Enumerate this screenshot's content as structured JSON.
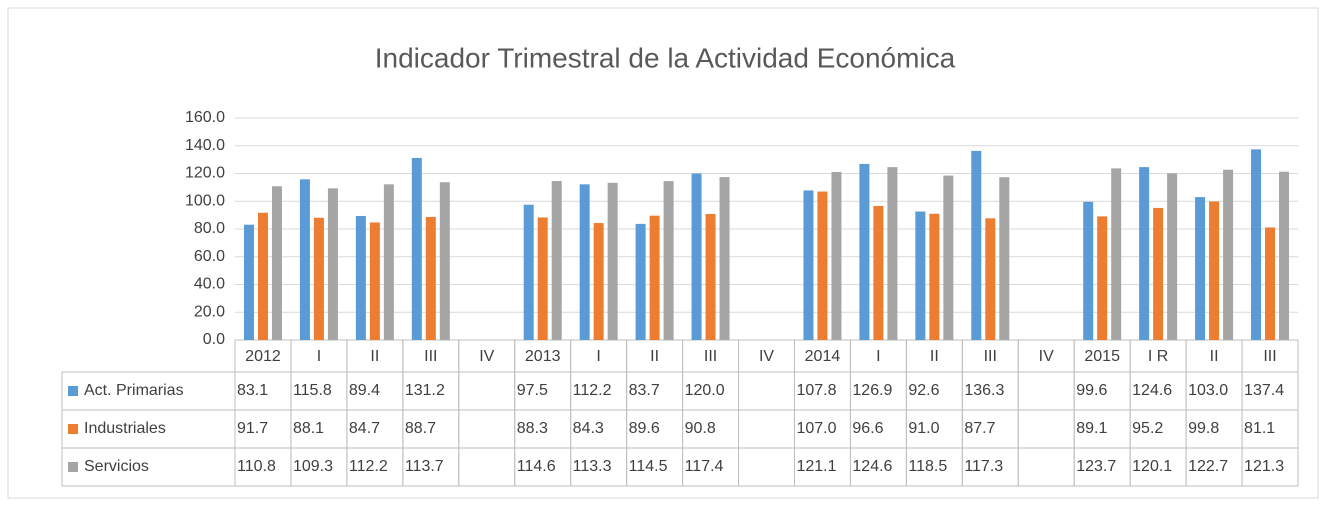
{
  "chart_data": {
    "type": "bar",
    "title": "Indicador Trimestral de la Actividad Económica",
    "categories": [
      "2012",
      "I",
      "II",
      "III",
      "IV",
      "2013",
      "I",
      "II",
      "III",
      "IV",
      "2014",
      "I",
      "II",
      "III",
      "IV",
      "2015",
      "I R",
      "II",
      "III"
    ],
    "series": [
      {
        "name": "Act. Primarias",
        "color": "#5b9bd5",
        "values": [
          83.1,
          115.8,
          89.4,
          131.2,
          null,
          97.5,
          112.2,
          83.7,
          120.0,
          null,
          107.8,
          126.9,
          92.6,
          136.3,
          null,
          99.6,
          124.6,
          103.0,
          137.4
        ],
        "value_labels": [
          "83.1",
          "115.8",
          "89.4",
          "131.2",
          null,
          "97.5",
          "112.2",
          "83.7",
          "120.0",
          null,
          "107.8",
          "126.9",
          "92.6",
          "136.3",
          null,
          "99.6",
          "124.6",
          "103.0",
          "137.4"
        ]
      },
      {
        "name": "Industriales",
        "color": "#ed7d31",
        "values": [
          91.7,
          88.1,
          84.7,
          88.7,
          null,
          88.3,
          84.3,
          89.6,
          90.8,
          null,
          107.0,
          96.6,
          91.0,
          87.7,
          null,
          89.1,
          95.2,
          99.8,
          81.1
        ],
        "value_labels": [
          "91.7",
          "88.1",
          "84.7",
          "88.7",
          null,
          "88.3",
          "84.3",
          "89.6",
          "90.8",
          null,
          "107.0",
          "96.6",
          "91.0",
          "87.7",
          null,
          "89.1",
          "95.2",
          "99.8",
          "81.1"
        ]
      },
      {
        "name": "Servicios",
        "color": "#a5a5a5",
        "values": [
          110.8,
          109.3,
          112.2,
          113.7,
          null,
          114.6,
          113.3,
          114.5,
          117.4,
          null,
          121.1,
          124.6,
          118.5,
          117.3,
          null,
          123.7,
          120.1,
          122.7,
          121.3
        ],
        "value_labels": [
          "110.8",
          "109.3",
          "112.2",
          "113.7",
          null,
          "114.6",
          "113.3",
          "114.5",
          "117.4",
          null,
          "121.1",
          "124.6",
          "118.5",
          "117.3",
          null,
          "123.7",
          "120.1",
          "122.7",
          "121.3"
        ]
      }
    ],
    "ylim": [
      0,
      160
    ],
    "yticks": [
      {
        "value": 0,
        "label": "0.0"
      },
      {
        "value": 20,
        "label": "20.0"
      },
      {
        "value": 40,
        "label": "40.0"
      },
      {
        "value": 60,
        "label": "60.0"
      },
      {
        "value": 80,
        "label": "80.0"
      },
      {
        "value": 100,
        "label": "100.0"
      },
      {
        "value": 120,
        "label": "120.0"
      },
      {
        "value": 140,
        "label": "140.0"
      },
      {
        "value": 160,
        "label": "160.0"
      }
    ],
    "grid": true
  }
}
